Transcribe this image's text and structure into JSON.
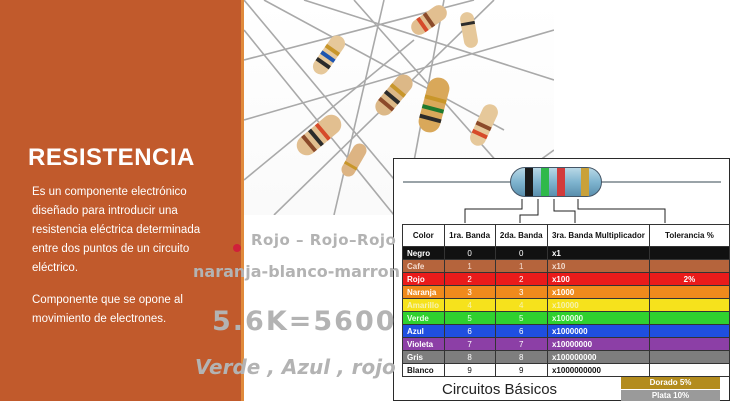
{
  "slide": {
    "title": "RESISTENCIA",
    "paragraphs": [
      "Es un componente electrónico diseñado para introducir una resistencia eléctrica determinada entre dos puntos de un circuito eléctrico.",
      "Componente que se opone al movimiento de electrones."
    ]
  },
  "colors": {
    "panel": "#c15a2c",
    "panel_accent": "#e08a3c",
    "annotation": "#b3b3b3"
  },
  "annotations": {
    "line1": "Rojo – Rojo–Rojo",
    "line2": "naranja-blanco-marron",
    "line3": "5.6K=5600",
    "line4": "Verde , Azul , rojo"
  },
  "chart": {
    "caption": "Circuitos Básicos",
    "headers": [
      "Color",
      "1ra. Banda",
      "2da. Banda",
      "3ra. Banda Multiplicador",
      "Tolerancia %"
    ],
    "rows": [
      {
        "color": "Negro",
        "b1": "0",
        "b2": "0",
        "mult": "x1",
        "tol": "",
        "bg": "#111111",
        "fg": "#ffffff",
        "tolbg": "#111111"
      },
      {
        "color": "Cafe",
        "b1": "1",
        "b2": "1",
        "mult": "x10",
        "tol": "",
        "bg": "#b5643c",
        "fg": "#f3dccf",
        "tolbg": "#b5643c"
      },
      {
        "color": "Rojo",
        "b1": "2",
        "b2": "2",
        "mult": "x100",
        "tol": "2%",
        "bg": "#ea1b1b",
        "fg": "#ffffff",
        "tolbg": "#ea1b1b"
      },
      {
        "color": "Naranja",
        "b1": "3",
        "b2": "3",
        "mult": "x1000",
        "tol": "",
        "bg": "#f08a1c",
        "fg": "#ffffff",
        "tolbg": "#f08a1c"
      },
      {
        "color": "Amarillo",
        "b1": "4",
        "b2": "4",
        "mult": "x10000",
        "tol": "",
        "bg": "#f6e21c",
        "fg": "#f6f2b0",
        "tolbg": "#f6e21c"
      },
      {
        "color": "Verde",
        "b1": "5",
        "b2": "5",
        "mult": "x100000",
        "tol": "",
        "bg": "#2fd12f",
        "fg": "#eaffea",
        "tolbg": "#2fd12f"
      },
      {
        "color": "Azul",
        "b1": "6",
        "b2": "6",
        "mult": "x1000000",
        "tol": "",
        "bg": "#1f4fe0",
        "fg": "#ffffff",
        "tolbg": "#1f4fe0"
      },
      {
        "color": "Violeta",
        "b1": "7",
        "b2": "7",
        "mult": "x10000000",
        "tol": "",
        "bg": "#8c3fa6",
        "fg": "#ffffff",
        "tolbg": "#8c3fa6"
      },
      {
        "color": "Gris",
        "b1": "8",
        "b2": "8",
        "mult": "x100000000",
        "tol": "",
        "bg": "#7e7e7e",
        "fg": "#ffffff",
        "tolbg": "#7e7e7e"
      },
      {
        "color": "Blanco",
        "b1": "9",
        "b2": "9",
        "mult": "x1000000000",
        "tol": "",
        "bg": "#ffffff",
        "fg": "#111111",
        "tolbg": "#ffffff"
      }
    ],
    "gold": {
      "label": "Dorado  5%",
      "bg": "#b38c1e"
    },
    "silver": {
      "label": "Plata  10%",
      "bg": "#9a9a9a"
    },
    "resistor_bands": [
      "#1a1a1a",
      "#2fb94a",
      "#d23b3b",
      "#c9a13a"
    ]
  }
}
